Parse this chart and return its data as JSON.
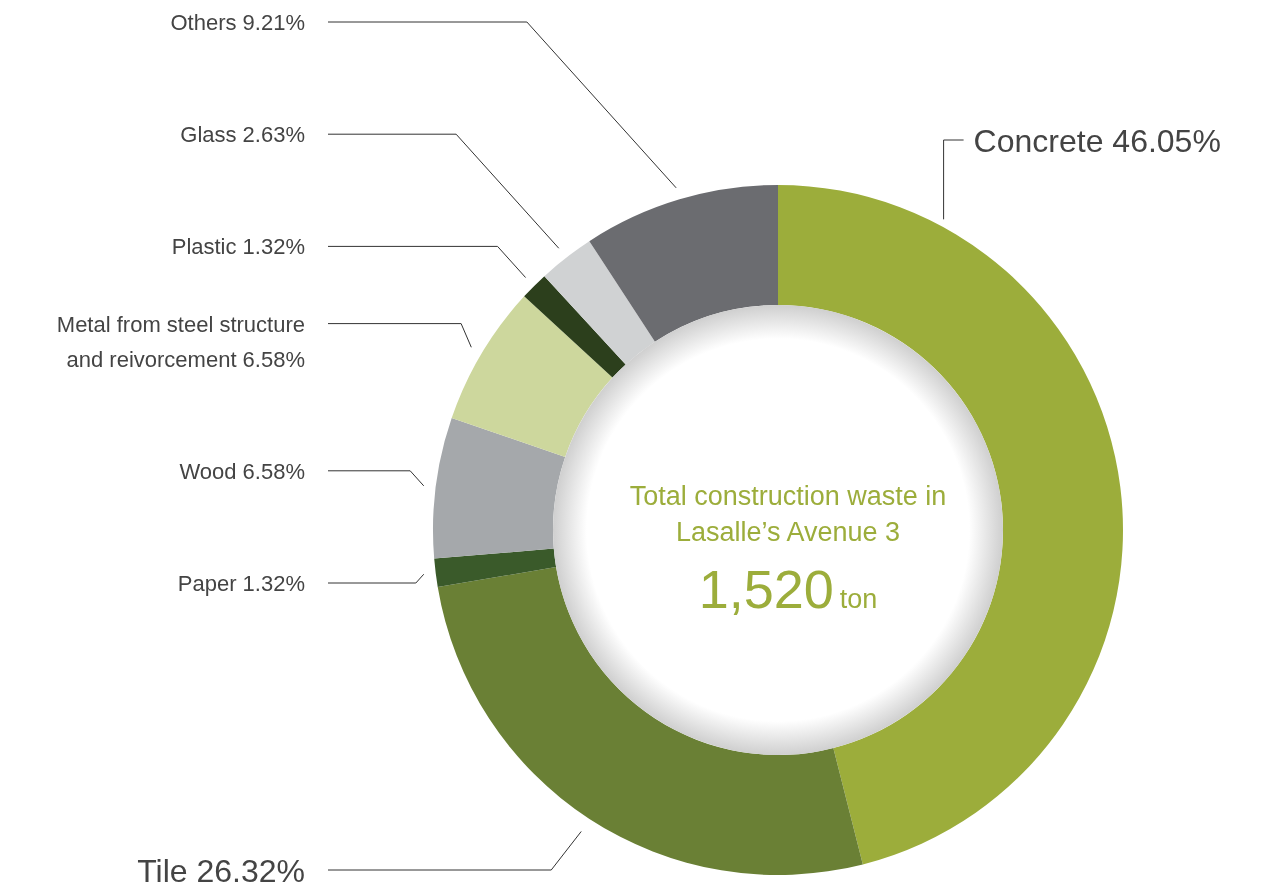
{
  "chart_data": {
    "type": "donut",
    "title": "Total construction waste in Lasalle’s Avenue 3",
    "annotations": [
      "1,520",
      "ton"
    ],
    "categories": [
      "Concrete",
      "Tile",
      "Paper",
      "Wood",
      "Metal from steel structure and reivorcement",
      "Plastic",
      "Glass",
      "Others"
    ],
    "values": [
      46.05,
      26.32,
      1.32,
      6.58,
      6.58,
      1.32,
      2.63,
      9.21
    ],
    "value_labels": [
      "46.05%",
      "26.32%",
      "1.32%",
      "6.58%",
      "6.58%",
      "1.32%",
      "2.63%",
      "9.21%"
    ],
    "colors": [
      "#9cad3b",
      "#6a8035",
      "#3a5a2a",
      "#a5a8ab",
      "#cdd79d",
      "#2c3f1c",
      "#d0d2d3",
      "#6b6c70"
    ]
  }
}
